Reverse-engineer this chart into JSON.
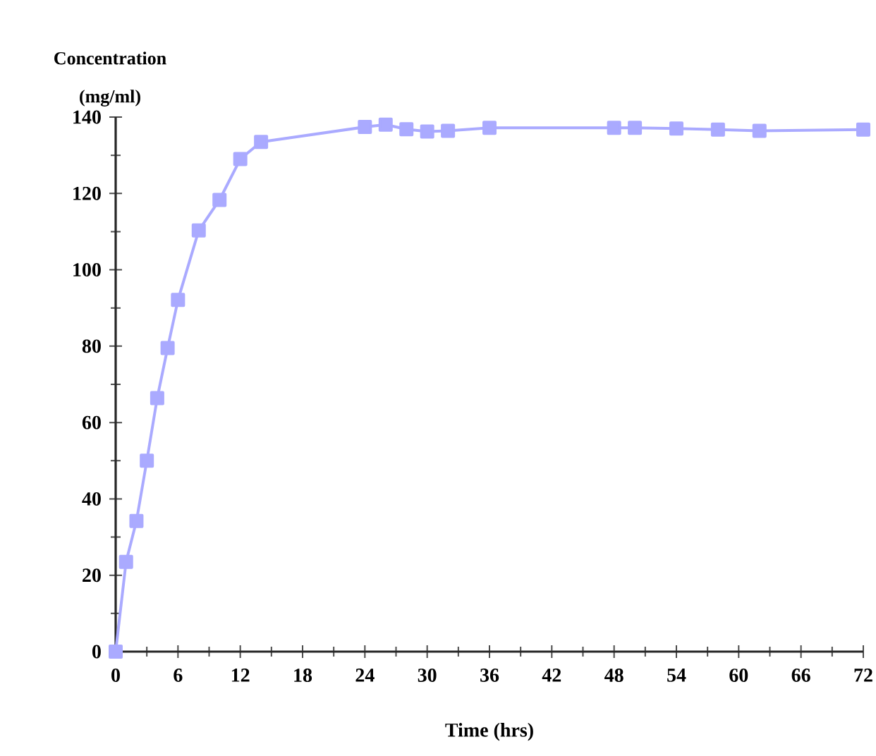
{
  "chart_data": {
    "type": "line",
    "xlabel": "Time (hrs)",
    "ylabel": "Concentration (mg/ml)",
    "x": [
      0,
      1,
      2,
      3,
      4,
      5,
      6,
      8,
      10,
      12,
      14,
      24,
      26,
      28,
      30,
      32,
      36,
      48,
      50,
      54,
      58,
      62,
      72
    ],
    "series": [
      {
        "color": "#aaaaff",
        "values": [
          0,
          23.5,
          34.2,
          50,
          66.4,
          79.5,
          92.1,
          110.3,
          118.3,
          129,
          133.5,
          137.4,
          138,
          136.8,
          136.2,
          136.4,
          137.2,
          137.2,
          137.2,
          137,
          136.7,
          136.4,
          136.7
        ]
      }
    ],
    "xlim": [
      0,
      72
    ],
    "ylim": [
      0,
      140
    ],
    "xticks": [
      0,
      6,
      12,
      18,
      24,
      30,
      36,
      42,
      48,
      54,
      60,
      66,
      72
    ],
    "yticks": [
      0,
      20,
      40,
      60,
      80,
      100,
      120,
      140
    ],
    "marker": "square",
    "line_style": "solid"
  }
}
